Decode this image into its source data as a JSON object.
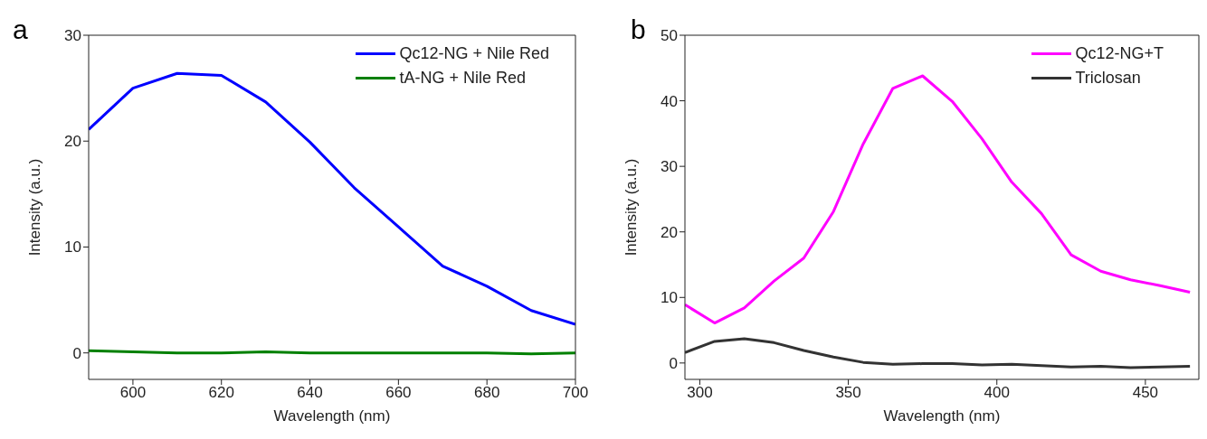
{
  "chart_data": [
    {
      "type": "line",
      "annotations": [
        "a"
      ],
      "xlabel": "Wavelength (nm)",
      "ylabel": "Intensity (a.u.)",
      "xlim": [
        590,
        700
      ],
      "xticks": [
        600,
        620,
        640,
        660,
        680,
        700
      ],
      "ylim": [
        -2.5,
        30
      ],
      "yticks": [
        0,
        10,
        20,
        30
      ],
      "grid": false,
      "legend": "top right",
      "marker": "none",
      "line_style": "solid",
      "x": [
        590,
        600,
        610,
        620,
        630,
        640,
        650,
        660,
        670,
        680,
        690,
        700
      ],
      "series": [
        {
          "name": "Qc12-NG + Nile Red",
          "color": "#0000ff",
          "values": [
            21.1,
            25.0,
            26.4,
            26.2,
            23.7,
            19.9,
            15.6,
            11.9,
            8.2,
            6.3,
            4.0,
            2.7
          ]
        },
        {
          "name": "tA-NG + Nile Red",
          "color": "#008000",
          "values": [
            0.2,
            0.1,
            0.0,
            0.0,
            0.1,
            0.0,
            0.0,
            0.0,
            0.0,
            0.0,
            -0.1,
            0.0
          ]
        }
      ]
    },
    {
      "type": "line",
      "annotations": [
        "b"
      ],
      "xlabel": "Wavelength (nm)",
      "ylabel": "Intensity (a.u.)",
      "xlim": [
        295,
        468
      ],
      "xticks": [
        300,
        350,
        400,
        450
      ],
      "ylim": [
        -2.5,
        50
      ],
      "yticks": [
        0,
        10,
        20,
        30,
        40,
        50
      ],
      "grid": false,
      "legend": "top right",
      "marker": "none",
      "line_style": "solid",
      "x": [
        295,
        305,
        315,
        325,
        335,
        345,
        355,
        365,
        375,
        385,
        395,
        405,
        415,
        425,
        435,
        445,
        455,
        465
      ],
      "series": [
        {
          "name": "Qc12-NG+T",
          "color": "#ff00ff",
          "values": [
            8.9,
            6.1,
            8.4,
            12.5,
            16.0,
            23.1,
            33.4,
            41.9,
            43.8,
            39.9,
            34.2,
            27.6,
            22.8,
            16.5,
            14.0,
            12.7,
            11.8,
            10.8
          ]
        },
        {
          "name": "Triclosan",
          "color": "#333333",
          "values": [
            1.6,
            3.3,
            3.7,
            3.1,
            1.9,
            0.9,
            0.1,
            -0.2,
            -0.1,
            -0.1,
            -0.3,
            -0.2,
            -0.4,
            -0.6,
            -0.5,
            -0.7,
            -0.6,
            -0.5
          ]
        }
      ]
    }
  ]
}
